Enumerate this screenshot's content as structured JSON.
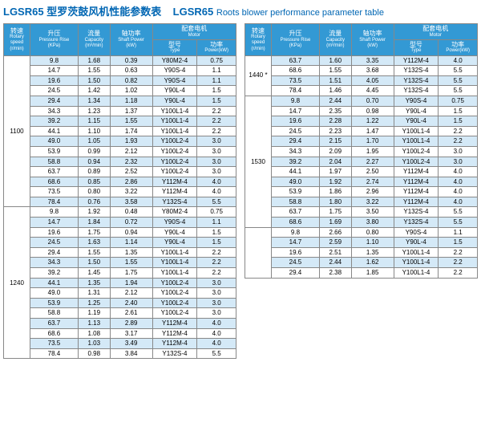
{
  "title_model": "LGSR65",
  "title_zh": "型罗茨鼓风机性能参数表",
  "title_en": "Roots blower performance parameter table",
  "headers": {
    "speed": {
      "zh": "转速",
      "en": "Rotary speed",
      "unit": "(r/min)"
    },
    "pressure": {
      "zh": "升压",
      "en": "Pressure Rise",
      "unit": "(KPa)"
    },
    "capacity": {
      "zh": "流量",
      "en": "Capacity",
      "unit": "(m³/min)"
    },
    "shaft": {
      "zh": "轴功率",
      "en": "Shaft Power",
      "unit": "(kW)"
    },
    "motor": {
      "zh": "配套电机",
      "en": "Motor"
    },
    "type": {
      "zh": "型号",
      "en": "Type"
    },
    "power": {
      "zh": "功率",
      "en": "Power(kW)"
    }
  },
  "left": [
    {
      "speed": "1100",
      "rows": [
        [
          "9.8",
          "1.68",
          "0.39",
          "Y80M2-4",
          "0.75"
        ],
        [
          "14.7",
          "1.55",
          "0.63",
          "Y90S-4",
          "1.1"
        ],
        [
          "19.6",
          "1.50",
          "0.82",
          "Y90S-4",
          "1.1"
        ],
        [
          "24.5",
          "1.42",
          "1.02",
          "Y90L-4",
          "1.5"
        ],
        [
          "29.4",
          "1.34",
          "1.18",
          "Y90L-4",
          "1.5"
        ],
        [
          "34.3",
          "1.23",
          "1.37",
          "Y100L1-4",
          "2.2"
        ],
        [
          "39.2",
          "1.15",
          "1.55",
          "Y100L1-4",
          "2.2"
        ],
        [
          "44.1",
          "1.10",
          "1.74",
          "Y100L1-4",
          "2.2"
        ],
        [
          "49.0",
          "1.05",
          "1.93",
          "Y100L2-4",
          "3.0"
        ],
        [
          "53.9",
          "0.99",
          "2.12",
          "Y100L2-4",
          "3.0"
        ],
        [
          "58.8",
          "0.94",
          "2.32",
          "Y100L2-4",
          "3.0"
        ],
        [
          "63.7",
          "0.89",
          "2.52",
          "Y100L2-4",
          "3.0"
        ],
        [
          "68.6",
          "0.85",
          "2.86",
          "Y112M-4",
          "4.0"
        ],
        [
          "73.5",
          "0.80",
          "3.22",
          "Y112M-4",
          "4.0"
        ],
        [
          "78.4",
          "0.76",
          "3.58",
          "Y132S-4",
          "5.5"
        ]
      ]
    },
    {
      "speed": "1240",
      "rows": [
        [
          "9.8",
          "1.92",
          "0.48",
          "Y80M2-4",
          "0.75"
        ],
        [
          "14.7",
          "1.84",
          "0.72",
          "Y90S-4",
          "1.1"
        ],
        [
          "19.6",
          "1.75",
          "0.94",
          "Y90L-4",
          "1.5"
        ],
        [
          "24.5",
          "1.63",
          "1.14",
          "Y90L-4",
          "1.5"
        ],
        [
          "29.4",
          "1.55",
          "1.35",
          "Y100L1-4",
          "2.2"
        ],
        [
          "34.3",
          "1.50",
          "1.55",
          "Y100L1-4",
          "2.2"
        ],
        [
          "39.2",
          "1.45",
          "1.75",
          "Y100L1-4",
          "2.2"
        ],
        [
          "44.1",
          "1.35",
          "1.94",
          "Y100L2-4",
          "3.0"
        ],
        [
          "49.0",
          "1.31",
          "2.12",
          "Y100L2-4",
          "3.0"
        ],
        [
          "53.9",
          "1.25",
          "2.40",
          "Y100L2-4",
          "3.0"
        ],
        [
          "58.8",
          "1.19",
          "2.61",
          "Y100L2-4",
          "3.0"
        ],
        [
          "63.7",
          "1.13",
          "2.89",
          "Y112M-4",
          "4.0"
        ],
        [
          "68.6",
          "1.08",
          "3.17",
          "Y112M-4",
          "4.0"
        ],
        [
          "73.5",
          "1.03",
          "3.49",
          "Y112M-4",
          "4.0"
        ],
        [
          "78.4",
          "0.98",
          "3.84",
          "Y132S-4",
          "5.5"
        ]
      ]
    }
  ],
  "right": [
    {
      "speed": "1440 *",
      "rows": [
        [
          "63.7",
          "1.60",
          "3.35",
          "Y112M-4",
          "4.0"
        ],
        [
          "68.6",
          "1.55",
          "3.68",
          "Y132S-4",
          "5.5"
        ],
        [
          "73.5",
          "1.51",
          "4.05",
          "Y132S-4",
          "5.5"
        ],
        [
          "78.4",
          "1.46",
          "4.45",
          "Y132S-4",
          "5.5"
        ]
      ]
    },
    {
      "speed": "1530",
      "rows": [
        [
          "9.8",
          "2.44",
          "0.70",
          "Y90S-4",
          "0.75"
        ],
        [
          "14.7",
          "2.35",
          "0.98",
          "Y90L-4",
          "1.5"
        ],
        [
          "19.6",
          "2.28",
          "1.22",
          "Y90L-4",
          "1.5"
        ],
        [
          "24.5",
          "2.23",
          "1.47",
          "Y100L1-4",
          "2.2"
        ],
        [
          "29.4",
          "2.15",
          "1.70",
          "Y100L1-4",
          "2.2"
        ],
        [
          "34.3",
          "2.09",
          "1.95",
          "Y100L2-4",
          "3.0"
        ],
        [
          "39.2",
          "2.04",
          "2.27",
          "Y100L2-4",
          "3.0"
        ],
        [
          "44.1",
          "1.97",
          "2.50",
          "Y112M-4",
          "4.0"
        ],
        [
          "49.0",
          "1.92",
          "2.74",
          "Y112M-4",
          "4.0"
        ],
        [
          "53.9",
          "1.86",
          "2.96",
          "Y112M-4",
          "4.0"
        ],
        [
          "58.8",
          "1.80",
          "3.22",
          "Y112M-4",
          "4.0"
        ],
        [
          "63.7",
          "1.75",
          "3.50",
          "Y132S-4",
          "5.5"
        ],
        [
          "68.6",
          "1.69",
          "3.80",
          "Y132S-4",
          "5.5"
        ]
      ]
    },
    {
      "speed": "",
      "rows": [
        [
          "9.8",
          "2.66",
          "0.80",
          "Y90S-4",
          "1.1"
        ],
        [
          "14.7",
          "2.59",
          "1.10",
          "Y90L-4",
          "1.5"
        ],
        [
          "19.6",
          "2.51",
          "1.35",
          "Y100L1-4",
          "2.2"
        ],
        [
          "24.5",
          "2.44",
          "1.62",
          "Y100L1-4",
          "2.2"
        ],
        [
          "29.4",
          "2.38",
          "1.85",
          "Y100L1-4",
          "2.2"
        ]
      ]
    }
  ]
}
